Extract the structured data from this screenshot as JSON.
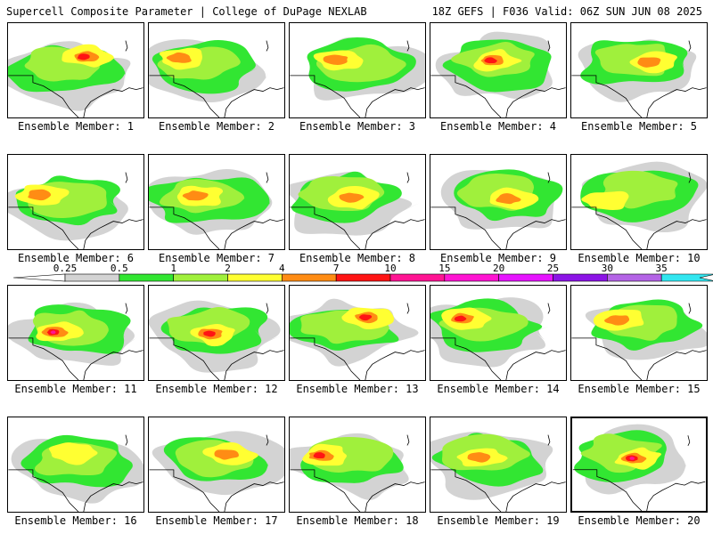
{
  "header": {
    "title_left": "Supercell Composite Parameter | College of DuPage NEXLAB",
    "title_right": "18Z GEFS | F036 Valid: 06Z SUN JUN 08 2025"
  },
  "legend": {
    "levels": [
      "0.25",
      "0.5",
      "1",
      "2",
      "4",
      "7",
      "10",
      "15",
      "20",
      "25",
      "30",
      "35"
    ],
    "colors": [
      "#d3d3d3",
      "#32e632",
      "#a0f03c",
      "#ffff32",
      "#ff8c14",
      "#ff1414",
      "#ff1493",
      "#ff14d2",
      "#e614ff",
      "#8c14e6",
      "#b464e6",
      "#32e6f0"
    ]
  },
  "panels": [
    {
      "label": "Ensemble Member: 1"
    },
    {
      "label": "Ensemble Member: 2"
    },
    {
      "label": "Ensemble Member: 3"
    },
    {
      "label": "Ensemble Member: 4"
    },
    {
      "label": "Ensemble Member: 5"
    },
    {
      "label": "Ensemble Member: 6"
    },
    {
      "label": "Ensemble Member: 7"
    },
    {
      "label": "Ensemble Member: 8"
    },
    {
      "label": "Ensemble Member: 9"
    },
    {
      "label": "Ensemble Member: 10"
    },
    {
      "label": "Ensemble Member: 11"
    },
    {
      "label": "Ensemble Member: 12"
    },
    {
      "label": "Ensemble Member: 13"
    },
    {
      "label": "Ensemble Member: 14"
    },
    {
      "label": "Ensemble Member: 15"
    },
    {
      "label": "Ensemble Member: 16"
    },
    {
      "label": "Ensemble Member: 17"
    },
    {
      "label": "Ensemble Member: 18"
    },
    {
      "label": "Ensemble Member: 19"
    },
    {
      "label": "Ensemble Member: 20",
      "selected": true
    }
  ]
}
